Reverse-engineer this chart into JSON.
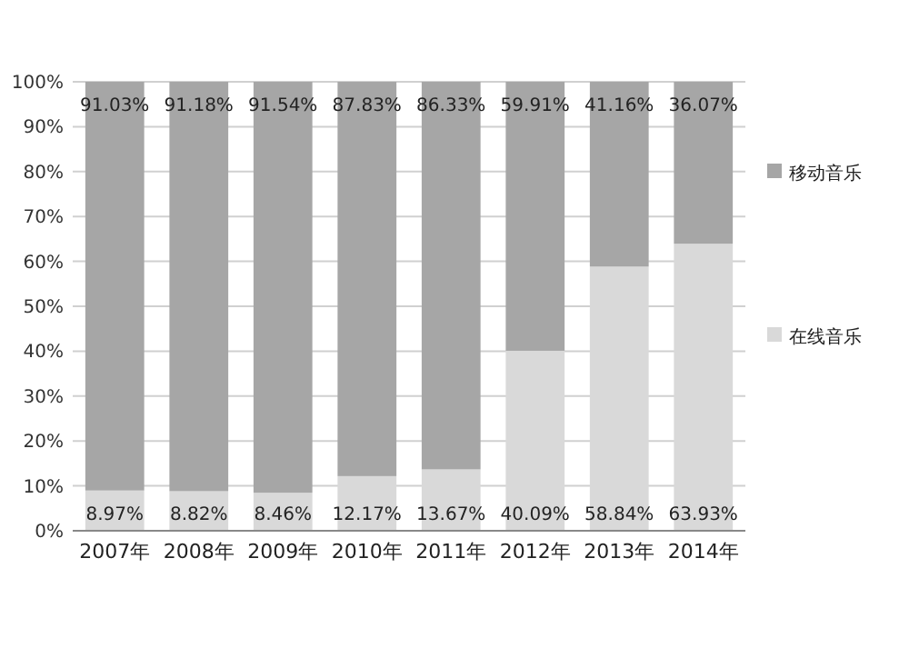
{
  "chart_data": {
    "type": "bar",
    "stacked": true,
    "categories": [
      "2007年",
      "2008年",
      "2009年",
      "2010年",
      "2011年",
      "2012年",
      "2013年",
      "2014年"
    ],
    "series": [
      {
        "name": "在线音乐",
        "color": "#d9d9d9",
        "values": [
          8.97,
          8.82,
          8.46,
          12.17,
          13.67,
          40.09,
          58.84,
          63.93
        ],
        "value_labels": [
          "8.97%",
          "8.82%",
          "8.46%",
          "12.17%",
          "13.67%",
          "40.09%",
          "58.84%",
          "63.93%"
        ]
      },
      {
        "name": "移动音乐",
        "color": "#a6a6a6",
        "values": [
          91.03,
          91.18,
          91.54,
          87.83,
          86.33,
          59.91,
          41.16,
          36.07
        ],
        "value_labels": [
          "91.03%",
          "91.18%",
          "91.54%",
          "87.83%",
          "86.33%",
          "59.91%",
          "41.16%",
          "36.07%"
        ]
      }
    ],
    "ylim": [
      0,
      100
    ],
    "yticks": [
      {
        "value": 0,
        "label": "0%"
      },
      {
        "value": 10,
        "label": "10%"
      },
      {
        "value": 20,
        "label": "20%"
      },
      {
        "value": 30,
        "label": "30%"
      },
      {
        "value": 40,
        "label": "40%"
      },
      {
        "value": 50,
        "label": "50%"
      },
      {
        "value": 60,
        "label": "60%"
      },
      {
        "value": 70,
        "label": "70%"
      },
      {
        "value": 80,
        "label": "80%"
      },
      {
        "value": 90,
        "label": "90%"
      },
      {
        "value": 100,
        "label": "100%"
      }
    ],
    "grid": "y",
    "legend": "right"
  }
}
